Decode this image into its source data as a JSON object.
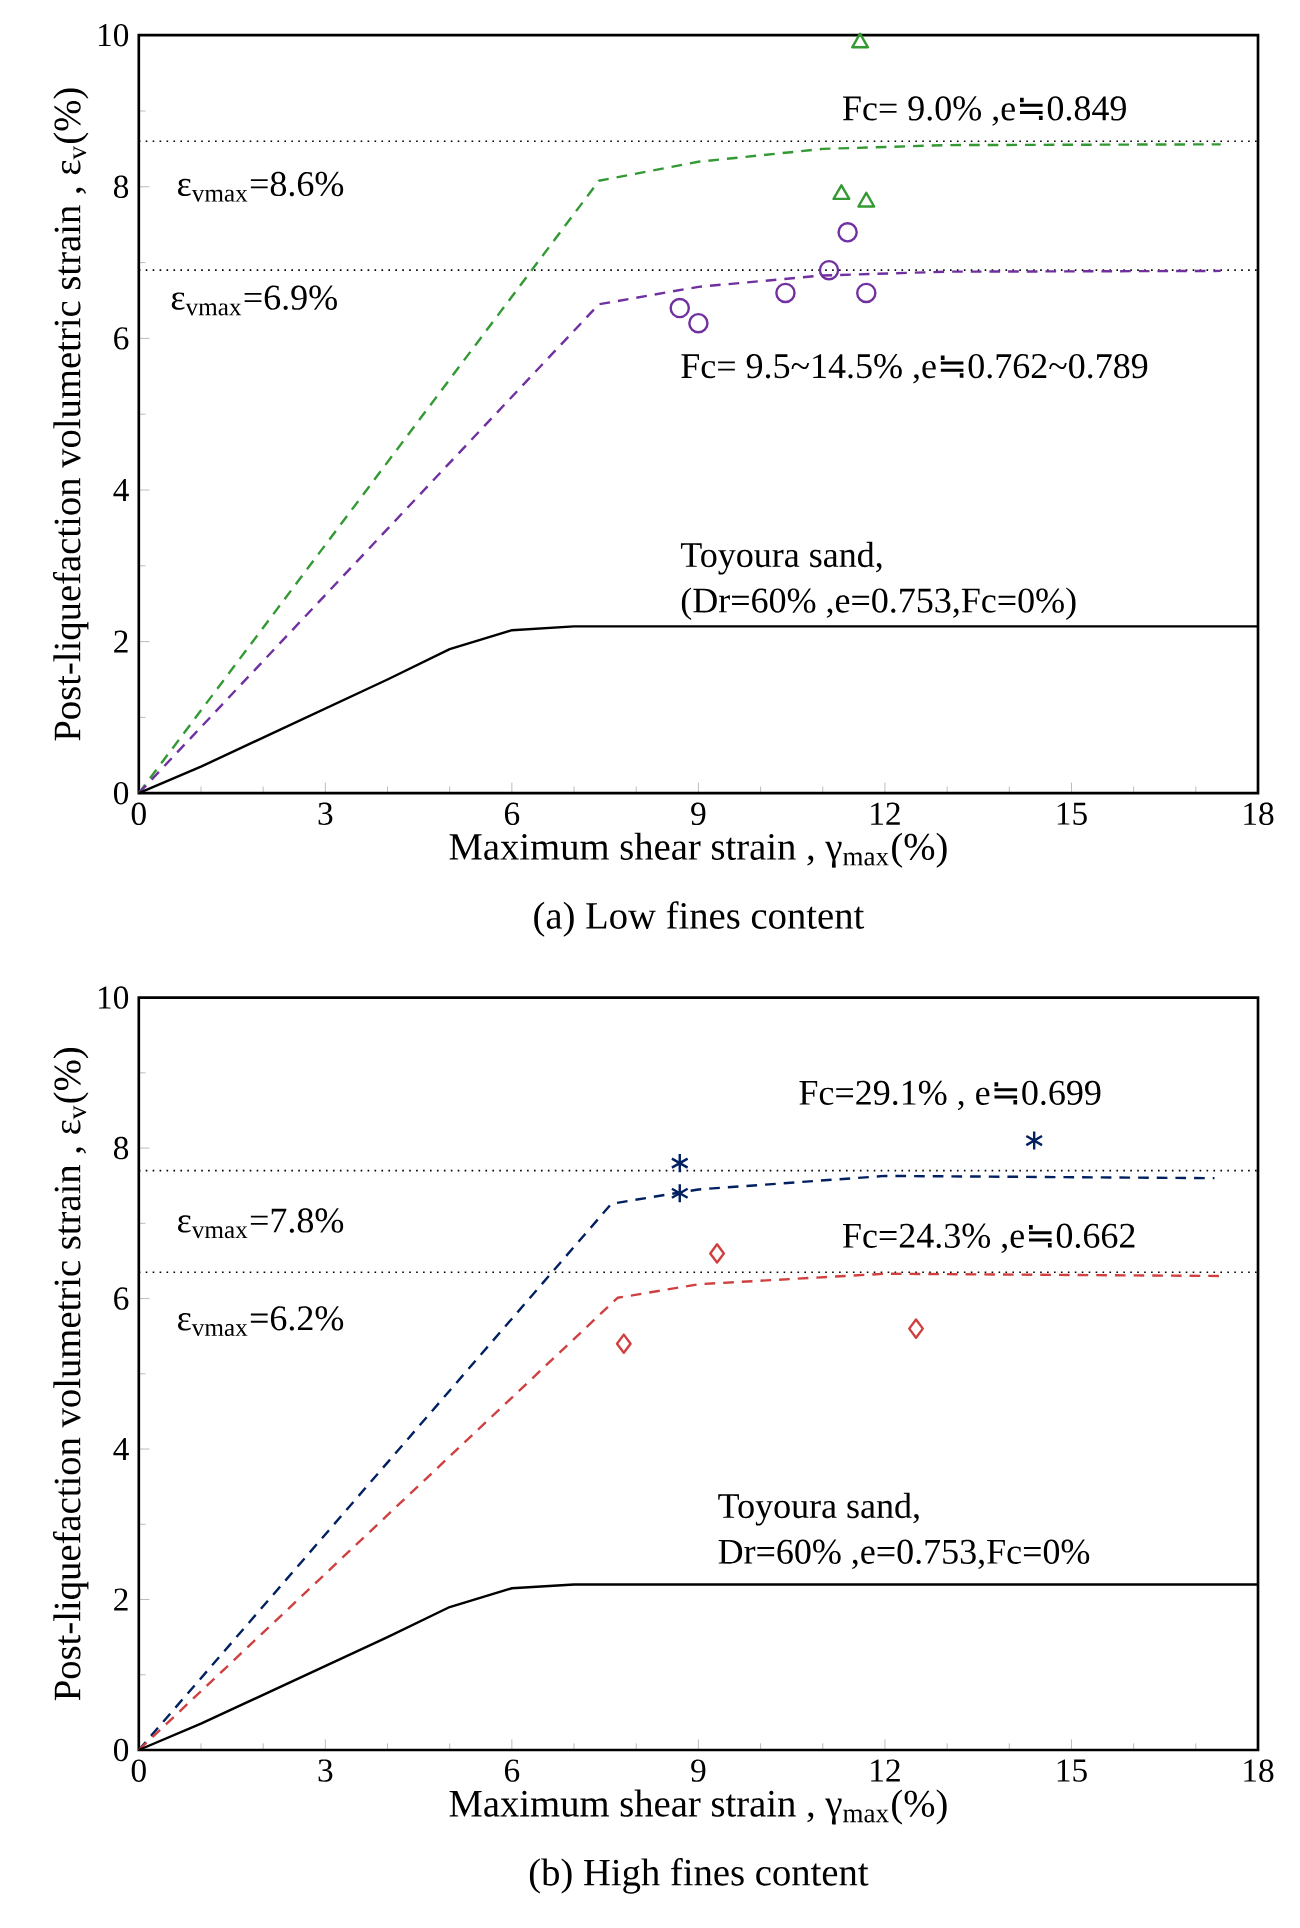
{
  "chart_data": [
    {
      "type": "line",
      "title": "(a) Low fines content",
      "xlabel": "Maximum shear strain , γ$_{max}$(%)",
      "ylabel": "Post-liquefaction volumetric strain , ε$_{v}$(%)",
      "xlim": [
        0,
        18
      ],
      "ylim": [
        0,
        10
      ],
      "xticks": [
        0,
        3,
        6,
        9,
        12,
        15,
        18
      ],
      "yticks": [
        0,
        2,
        4,
        6,
        8,
        10
      ],
      "series": [
        {
          "color": "#339933",
          "line_style": "dashed",
          "x": [
            0,
            7.4,
            9,
            11,
            13,
            17.4
          ],
          "values": [
            0,
            8.08,
            8.33,
            8.5,
            8.55,
            8.56
          ]
        },
        {
          "color": "#7030a0",
          "line_style": "dashed",
          "x": [
            0,
            7.4,
            9,
            11,
            13,
            17.4
          ],
          "values": [
            0,
            6.45,
            6.68,
            6.83,
            6.88,
            6.89
          ]
        },
        {
          "color": "#000000",
          "line_style": "solid",
          "x": [
            0,
            1,
            4,
            5,
            6,
            7,
            18
          ],
          "values": [
            0,
            0.35,
            1.5,
            1.9,
            2.15,
            2.2,
            2.2
          ]
        },
        {
          "type": "scatter",
          "color": "#339933",
          "marker": "triangle",
          "x": [
            11.6,
            11.3,
            11.7
          ],
          "values": [
            9.9,
            7.9,
            7.8
          ]
        },
        {
          "type": "scatter",
          "color": "#7030a0",
          "marker": "circle",
          "x": [
            8.7,
            9.0,
            10.4,
            11.1,
            11.4,
            11.7
          ],
          "values": [
            6.4,
            6.2,
            6.6,
            6.9,
            7.4,
            6.6
          ]
        }
      ],
      "ref_lines": [
        {
          "axis": "y",
          "value": 8.6,
          "line_style": "dotted",
          "color": "#000000"
        },
        {
          "axis": "y",
          "value": 6.9,
          "line_style": "dotted",
          "color": "#000000"
        }
      ],
      "annotations": [
        "ε$_{vmax}$=8.6%",
        "ε$_{vmax}$=6.9%",
        "Fc= 9.0% ,e≒0.849",
        "Fc= 9.5~14.5% ,e≒0.762~0.789",
        "Toyoura sand,",
        "(Dr=60% ,e=0.753,Fc=0%)"
      ]
    },
    {
      "type": "line",
      "title": "(b) High fines content",
      "xlabel": "Maximum shear strain , γ$_{max}$(%)",
      "ylabel": "Post-liquefaction volumetric strain , ε$_{v}$(%)",
      "xlim": [
        0,
        18
      ],
      "ylim": [
        0,
        10
      ],
      "xticks": [
        0,
        3,
        6,
        9,
        12,
        15,
        18
      ],
      "yticks": [
        0,
        2,
        4,
        6,
        8,
        10
      ],
      "series": [
        {
          "color": "#002060",
          "line_style": "dashed",
          "x": [
            0,
            7.6,
            9,
            12,
            17.3
          ],
          "values": [
            0,
            7.26,
            7.45,
            7.63,
            7.6
          ]
        },
        {
          "color": "#d04040",
          "line_style": "dashed",
          "x": [
            0,
            7.7,
            9,
            12,
            17.4
          ],
          "values": [
            0,
            6.01,
            6.19,
            6.33,
            6.3
          ]
        },
        {
          "color": "#000000",
          "line_style": "solid",
          "x": [
            0,
            1,
            4,
            5,
            6,
            7,
            18
          ],
          "values": [
            0,
            0.35,
            1.5,
            1.9,
            2.15,
            2.2,
            2.2
          ]
        },
        {
          "type": "scatter",
          "color": "#002060",
          "marker": "cross",
          "x": [
            8.7,
            8.7,
            14.4
          ],
          "values": [
            7.8,
            7.4,
            8.1
          ]
        },
        {
          "type": "scatter",
          "color": "#d04040",
          "marker": "diamond",
          "x": [
            7.8,
            9.3,
            12.5
          ],
          "values": [
            5.4,
            6.6,
            5.6
          ]
        }
      ],
      "ref_lines": [
        {
          "axis": "y",
          "value": 7.7,
          "line_style": "dotted",
          "color": "#000000"
        },
        {
          "axis": "y",
          "value": 6.35,
          "line_style": "dotted",
          "color": "#000000"
        }
      ],
      "annotations": [
        "ε$_{vmax}$=7.8%",
        "ε$_{vmax}$=6.2%",
        "Fc=29.1% , e≒0.699",
        "Fc=24.3% ,e≒0.662",
        "Toyoura sand,",
        "Dr=60% ,e=0.753,Fc=0%"
      ]
    }
  ]
}
